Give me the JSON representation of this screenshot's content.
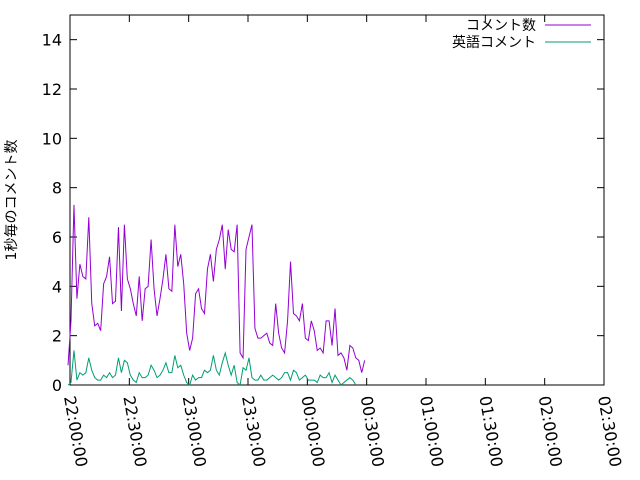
{
  "chart_data": {
    "type": "line",
    "title": "",
    "xlabel": "",
    "ylabel": "1秒毎のコメント数",
    "xlim_seconds_of_day": [
      79200,
      95400
    ],
    "ylim": [
      0,
      15
    ],
    "grid": false,
    "legend_position": "top-right",
    "x_ticks": [
      "22:00:00",
      "22:30:00",
      "23:00:00",
      "23:30:00",
      "00:00:00",
      "00:30:00",
      "01:00:00",
      "01:30:00",
      "02:00:00",
      "02:30:00"
    ],
    "y_ticks": [
      "0",
      "2",
      "4",
      "6",
      "8",
      "10",
      "12",
      "14"
    ],
    "series": [
      {
        "name": "コメント数",
        "color": "#9400d3",
        "start": "21:59:00",
        "step_seconds": 90,
        "values": [
          0.8,
          2.6,
          7.3,
          3.5,
          4.9,
          4.4,
          4.3,
          6.8,
          3.3,
          2.4,
          2.5,
          2.2,
          4.1,
          4.4,
          5.2,
          3.3,
          3.4,
          6.4,
          3.0,
          6.5,
          4.3,
          3.9,
          3.3,
          2.8,
          4.4,
          2.6,
          3.9,
          4.0,
          5.9,
          3.9,
          2.8,
          3.5,
          4.3,
          5.3,
          3.9,
          3.8,
          6.5,
          4.8,
          5.3,
          4.1,
          2.1,
          1.4,
          1.9,
          3.7,
          3.9,
          3.1,
          2.9,
          4.7,
          5.3,
          4.2,
          5.5,
          5.9,
          6.5,
          4.7,
          6.3,
          5.5,
          5.4,
          6.5,
          1.3,
          1.1,
          5.5,
          6.0,
          6.5,
          2.3,
          1.9,
          1.9,
          2.0,
          2.1,
          1.7,
          1.6,
          3.3,
          2.1,
          1.5,
          1.3,
          2.6,
          5.0,
          2.9,
          2.8,
          2.6,
          3.3,
          1.9,
          1.8,
          2.6,
          2.2,
          1.4,
          1.5,
          1.3,
          2.6,
          2.6,
          1.6,
          3.1,
          1.2,
          1.3,
          1.1,
          0.6,
          1.6,
          1.5,
          1.1,
          1.0,
          0.5,
          1.0
        ]
      },
      {
        "name": "英語コメント",
        "color": "#009e73",
        "start": "21:59:00",
        "step_seconds": 90,
        "values": [
          0.0,
          0.1,
          1.4,
          0.2,
          0.5,
          0.4,
          0.5,
          1.1,
          0.6,
          0.3,
          0.2,
          0.2,
          0.4,
          0.3,
          0.5,
          0.3,
          0.4,
          1.1,
          0.5,
          1.0,
          0.9,
          0.4,
          0.2,
          0.1,
          0.5,
          0.3,
          0.3,
          0.4,
          0.8,
          0.6,
          0.3,
          0.4,
          0.6,
          0.9,
          0.5,
          0.5,
          1.2,
          0.7,
          0.8,
          0.4,
          0.1,
          0.0,
          0.4,
          0.2,
          0.3,
          0.3,
          0.6,
          0.5,
          0.6,
          1.2,
          0.6,
          0.4,
          0.9,
          1.3,
          0.8,
          0.4,
          0.8,
          0.1,
          0.0,
          0.7,
          0.6,
          1.1,
          0.3,
          0.2,
          0.2,
          0.4,
          0.2,
          0.2,
          0.3,
          0.4,
          0.3,
          0.2,
          0.3,
          0.5,
          0.5,
          0.2,
          0.6,
          0.5,
          0.2,
          0.3,
          0.4,
          0.2,
          0.2,
          0.2,
          0.1,
          0.4,
          0.3,
          0.3,
          0.5,
          0.1,
          0.4,
          0.2,
          0.0,
          0.1,
          0.2,
          0.3,
          0.2,
          0.0
        ]
      }
    ]
  }
}
